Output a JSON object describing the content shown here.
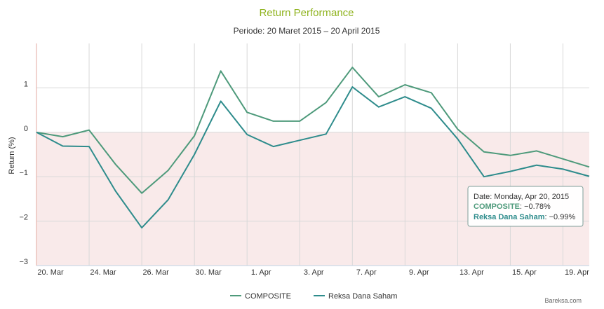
{
  "chart_data": {
    "type": "line",
    "title": "Return Performance",
    "subtitle": "Periode: 20 Maret 2015 – 20 April 2015",
    "ylabel": "Return (%)",
    "xlabel": "",
    "ylim": [
      -3,
      2
    ],
    "yticks": [
      -3,
      -2,
      -1,
      0,
      1
    ],
    "grid": true,
    "x_tick_labels": [
      "20. Mar",
      "24. Mar",
      "26. Mar",
      "30. Mar",
      "1. Apr",
      "3. Apr",
      "7. Apr",
      "9. Apr",
      "13. Apr",
      "15. Apr",
      "19. Apr"
    ],
    "negative_region_color": "#f9eaea",
    "series": [
      {
        "name": "COMPOSITE",
        "color": "#4e9a7b",
        "values": [
          0.0,
          -0.1,
          0.05,
          -0.72,
          -1.37,
          -0.86,
          -0.08,
          1.38,
          0.45,
          0.25,
          0.25,
          0.67,
          1.46,
          0.8,
          1.07,
          0.89,
          0.07,
          -0.44,
          -0.52,
          -0.42,
          -0.6,
          -0.78
        ]
      },
      {
        "name": "Reksa Dana Saham",
        "color": "#2e8c8c",
        "values": [
          0.0,
          -0.31,
          -0.32,
          -1.32,
          -2.15,
          -1.52,
          -0.5,
          0.7,
          -0.05,
          -0.32,
          -0.18,
          -0.04,
          1.02,
          0.57,
          0.8,
          0.54,
          -0.15,
          -1.0,
          -0.88,
          -0.74,
          -0.83,
          -0.99
        ]
      }
    ]
  },
  "tooltip": {
    "date": "Date: Monday, Apr 20, 2015",
    "composite_label": "COMPOSITE",
    "composite_value": ": −0.78%",
    "rds_label": "Reksa Dana Saham",
    "rds_value": ": −0.99%"
  },
  "credit": "Bareksa.com"
}
